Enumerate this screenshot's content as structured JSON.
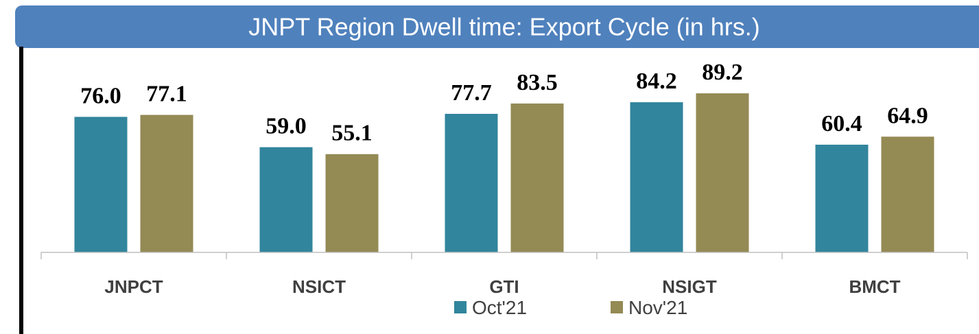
{
  "chart_data": {
    "type": "bar",
    "title": "JNPT Region Dwell time: Export Cycle (in hrs.)",
    "categories": [
      "JNPCT",
      "NSICT",
      "GTI",
      "NSIGT",
      "BMCT"
    ],
    "series": [
      {
        "name": "Oct'21",
        "color": "#31859c",
        "values": [
          76.0,
          59.0,
          77.7,
          84.2,
          60.4
        ],
        "value_labels": [
          "76.0",
          "59.0",
          "77.7",
          "84.2",
          "60.4"
        ]
      },
      {
        "name": "Nov'21",
        "color": "#948a54",
        "values": [
          77.1,
          55.1,
          83.5,
          89.2,
          64.9
        ],
        "value_labels": [
          "77.1",
          "55.1",
          "83.5",
          "89.2",
          "64.9"
        ]
      }
    ],
    "ylim": [
      0,
      100
    ],
    "legend": "bottom"
  }
}
